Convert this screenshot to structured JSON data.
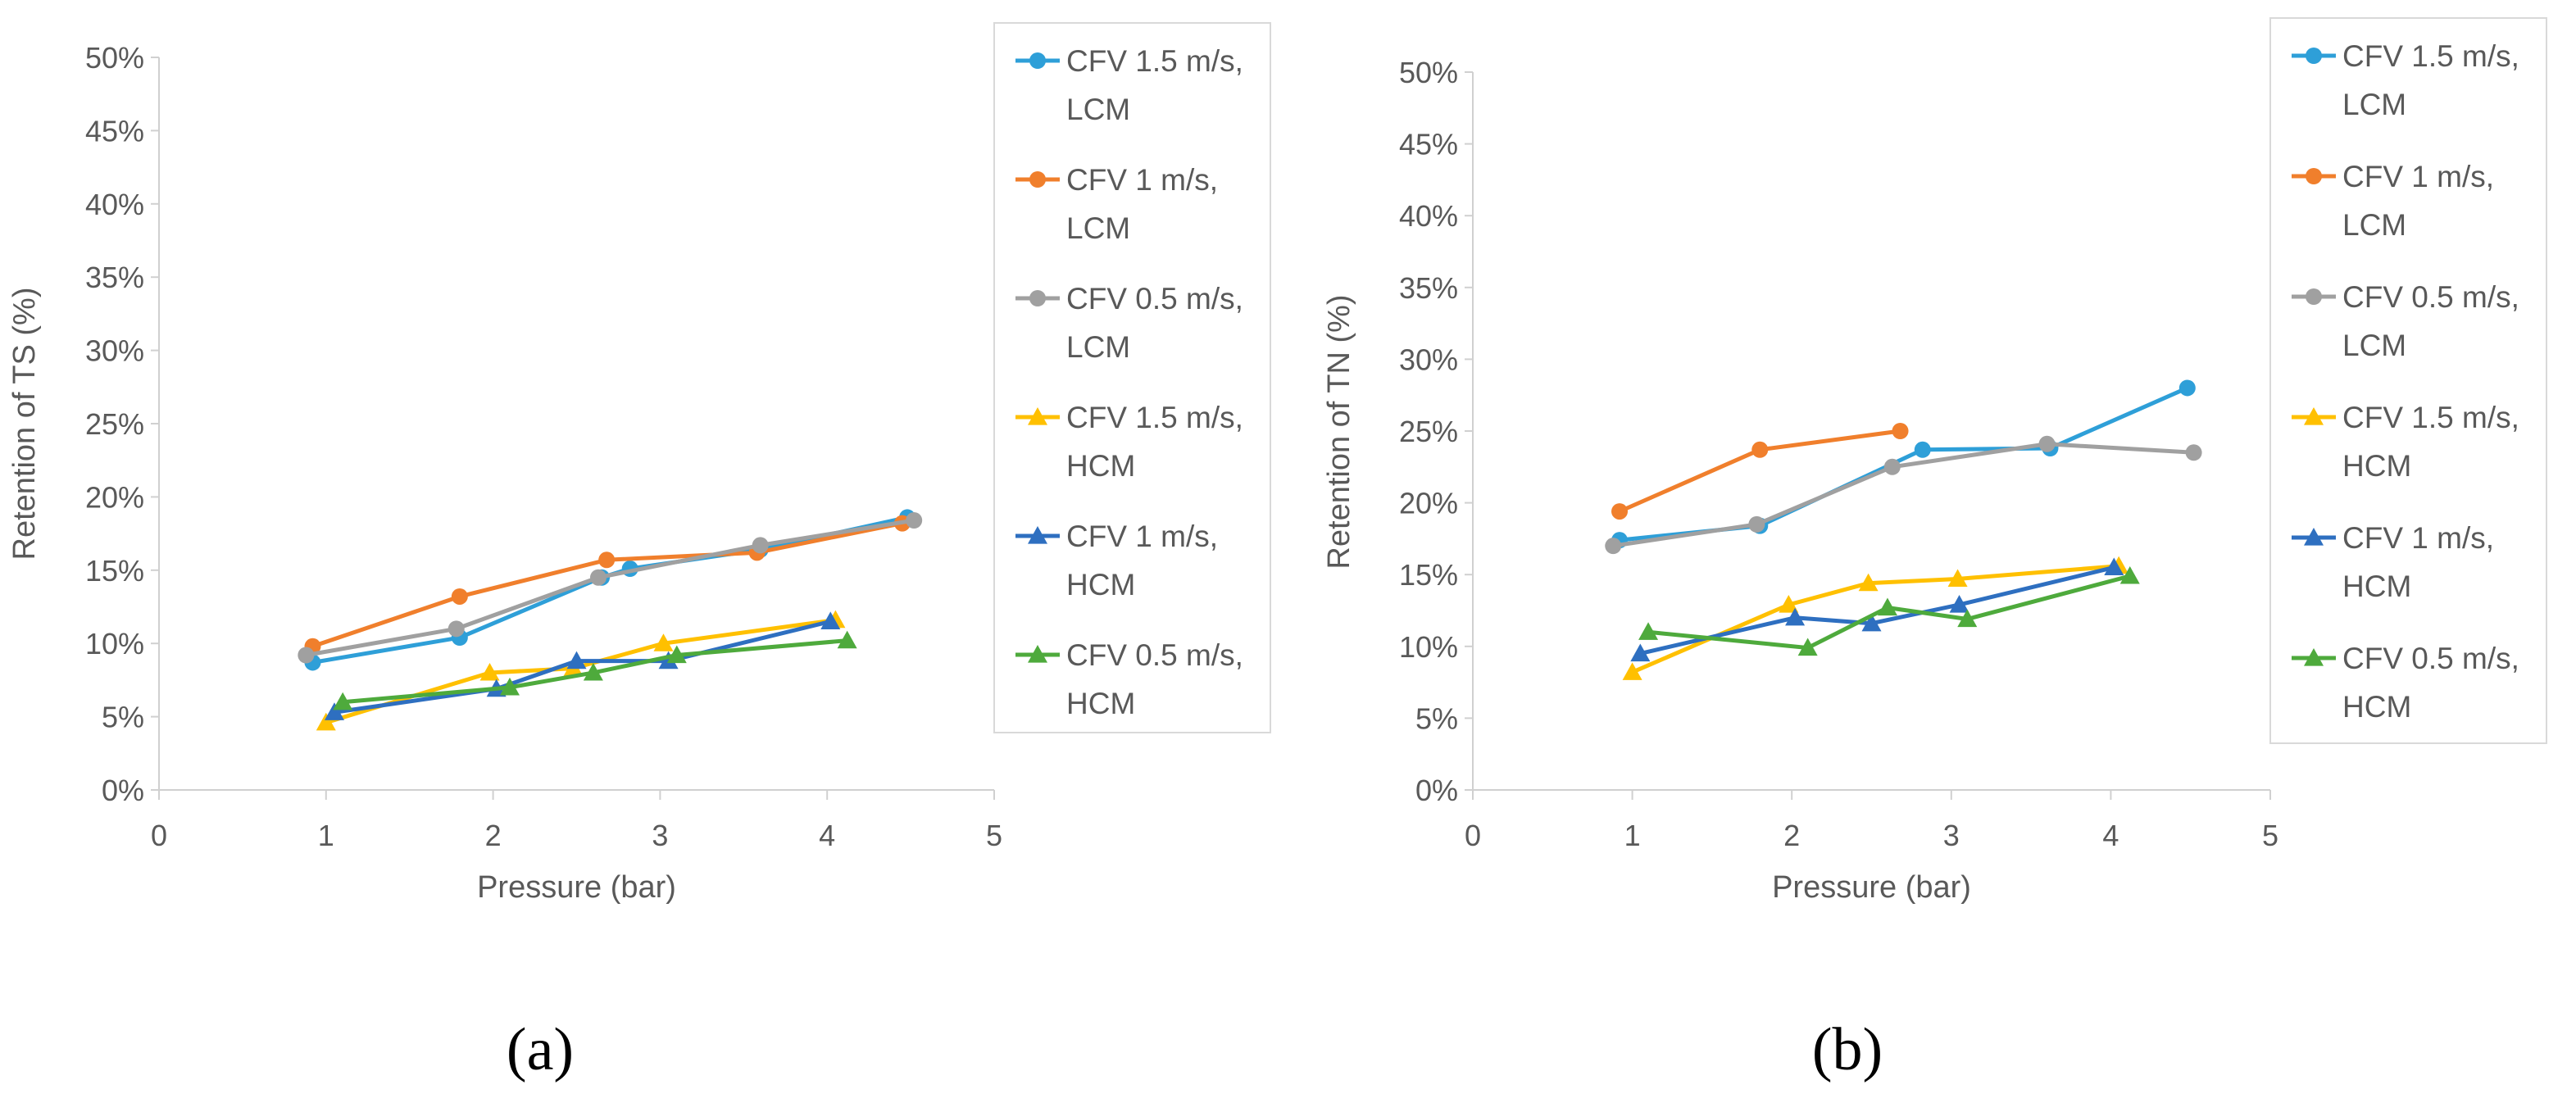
{
  "chart_data": [
    {
      "type": "line",
      "panel_label": "(a)",
      "xlabel": "Pressure  (bar)",
      "ylabel": "Retention of TS  (%)",
      "xlim": [
        0,
        5
      ],
      "ylim": [
        0,
        50
      ],
      "x_ticks": [
        "0",
        "1",
        "2",
        "3",
        "4",
        "5"
      ],
      "y_ticks": [
        "0%",
        "5%",
        "10%",
        "15%",
        "20%",
        "25%",
        "30%",
        "35%",
        "40%",
        "45%",
        "50%"
      ],
      "legend_position": "right",
      "series": [
        {
          "name": "CFV 1.5 m/s, LCM",
          "color": "#2E9FD8",
          "marker": "circle",
          "x": [
            0.92,
            1.8,
            2.65,
            2.82,
            3.6,
            4.48
          ],
          "y": [
            8.7,
            10.4,
            14.5,
            15.1,
            16.4,
            18.6
          ]
        },
        {
          "name": "CFV 1 m/s, LCM",
          "color": "#F07F2C",
          "marker": "circle",
          "x": [
            0.92,
            1.8,
            2.68,
            3.58,
            4.45
          ],
          "y": [
            9.8,
            13.2,
            15.7,
            16.2,
            18.2
          ]
        },
        {
          "name": "CFV 0.5 m/s, LCM",
          "color": "#A0A0A0",
          "marker": "circle",
          "x": [
            0.88,
            1.78,
            2.63,
            3.6,
            4.52
          ],
          "y": [
            9.2,
            11.0,
            14.5,
            16.7,
            18.4
          ]
        },
        {
          "name": "CFV 1.5 m/s, HCM",
          "color": "#FFC000",
          "marker": "triangle",
          "x": [
            1.0,
            1.98,
            2.48,
            3.02,
            4.05
          ],
          "y": [
            4.6,
            8.0,
            8.3,
            10.0,
            11.6
          ]
        },
        {
          "name": "CFV 1 m/s, HCM",
          "color": "#2E6FC0",
          "marker": "triangle",
          "x": [
            1.05,
            2.02,
            2.5,
            3.05,
            4.02
          ],
          "y": [
            5.3,
            6.9,
            8.8,
            8.8,
            11.5
          ]
        },
        {
          "name": "CFV 0.5 m/s, HCM",
          "color": "#4EAA3C",
          "marker": "triangle",
          "x": [
            1.1,
            2.1,
            2.6,
            3.1,
            4.12
          ],
          "y": [
            6.0,
            7.0,
            8.0,
            9.2,
            10.2
          ]
        }
      ]
    },
    {
      "type": "line",
      "panel_label": "(b)",
      "xlabel": "Pressure  (bar)",
      "ylabel": "Retention of TN  (%)",
      "xlim": [
        0,
        5
      ],
      "ylim": [
        0,
        50
      ],
      "x_ticks": [
        "0",
        "1",
        "2",
        "3",
        "4",
        "5"
      ],
      "y_ticks": [
        "0%",
        "5%",
        "10%",
        "15%",
        "20%",
        "25%",
        "30%",
        "35%",
        "40%",
        "45%",
        "50%"
      ],
      "legend_position": "right",
      "series": [
        {
          "name": "CFV 1.5 m/s, LCM",
          "color": "#2E9FD8",
          "marker": "circle",
          "x": [
            0.92,
            1.8,
            2.82,
            3.62,
            4.48
          ],
          "y": [
            17.4,
            18.4,
            23.7,
            23.8,
            28.0
          ]
        },
        {
          "name": "CFV 1 m/s, LCM",
          "color": "#F07F2C",
          "marker": "circle",
          "x": [
            0.92,
            1.8,
            2.68
          ],
          "y": [
            19.4,
            23.7,
            25.0
          ]
        },
        {
          "name": "CFV 0.5 m/s, LCM",
          "color": "#A0A0A0",
          "marker": "circle",
          "x": [
            0.88,
            1.78,
            2.63,
            3.6,
            4.52
          ],
          "y": [
            17.0,
            18.5,
            22.5,
            24.1,
            23.5
          ]
        },
        {
          "name": "CFV 1.5 m/s, HCM",
          "color": "#FFC000",
          "marker": "triangle",
          "x": [
            1.0,
            1.98,
            2.48,
            3.04,
            4.05
          ],
          "y": [
            8.2,
            12.9,
            14.4,
            14.7,
            15.6
          ]
        },
        {
          "name": "CFV 1 m/s, HCM",
          "color": "#2E6FC0",
          "marker": "triangle",
          "x": [
            1.05,
            2.02,
            2.5,
            3.05,
            4.02
          ],
          "y": [
            9.5,
            12.0,
            11.6,
            12.9,
            15.5
          ]
        },
        {
          "name": "CFV 0.5 m/s, HCM",
          "color": "#4EAA3C",
          "marker": "triangle",
          "x": [
            1.1,
            2.1,
            2.6,
            3.1,
            4.12
          ],
          "y": [
            11.0,
            9.9,
            12.7,
            11.9,
            14.9
          ]
        }
      ]
    }
  ]
}
